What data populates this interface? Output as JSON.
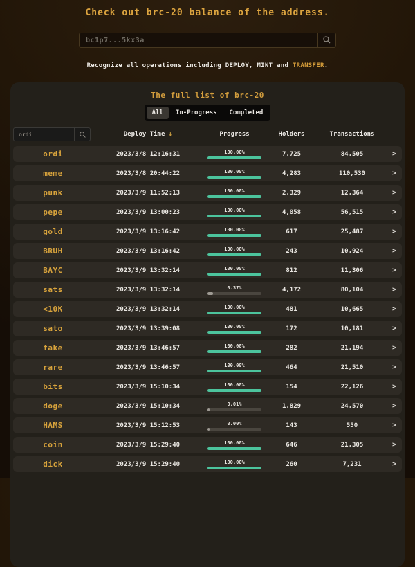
{
  "header": {
    "title": "Check out brc-20 balance of the address.",
    "address_input": {
      "placeholder": "bc1p7...5kx3a",
      "value": ""
    },
    "note": {
      "prefix": "Recognize all operations including DEPLOY, MINT and ",
      "highlight": "TRANSFER",
      "suffix": "."
    }
  },
  "panel": {
    "title": "The full list of brc-20",
    "tabs": [
      {
        "label": "All",
        "active": true
      },
      {
        "label": "In-Progress",
        "active": false
      },
      {
        "label": "Completed",
        "active": false
      }
    ],
    "filter_input": {
      "value": "ordi",
      "placeholder": ""
    },
    "columns": {
      "deploy_time": "Deploy Time",
      "progress": "Progress",
      "holders": "Holders",
      "transactions": "Transactions"
    },
    "sort": {
      "column": "deploy_time",
      "direction": "desc"
    },
    "rows": [
      {
        "token": "ordi",
        "deploy_time": "2023/3/8 12:16:31",
        "progress": "100.00%",
        "progress_pct": 100.0,
        "holders": "7,725",
        "transactions": "84,505"
      },
      {
        "token": "meme",
        "deploy_time": "2023/3/8 20:44:22",
        "progress": "100.00%",
        "progress_pct": 100.0,
        "holders": "4,283",
        "transactions": "110,530"
      },
      {
        "token": "punk",
        "deploy_time": "2023/3/9 11:52:13",
        "progress": "100.00%",
        "progress_pct": 100.0,
        "holders": "2,329",
        "transactions": "12,364"
      },
      {
        "token": "pepe",
        "deploy_time": "2023/3/9 13:00:23",
        "progress": "100.00%",
        "progress_pct": 100.0,
        "holders": "4,058",
        "transactions": "56,515"
      },
      {
        "token": "gold",
        "deploy_time": "2023/3/9 13:16:42",
        "progress": "100.00%",
        "progress_pct": 100.0,
        "holders": "617",
        "transactions": "25,487"
      },
      {
        "token": "BRUH",
        "deploy_time": "2023/3/9 13:16:42",
        "progress": "100.00%",
        "progress_pct": 100.0,
        "holders": "243",
        "transactions": "10,924"
      },
      {
        "token": "BAYC",
        "deploy_time": "2023/3/9 13:32:14",
        "progress": "100.00%",
        "progress_pct": 100.0,
        "holders": "812",
        "transactions": "11,306"
      },
      {
        "token": "sats",
        "deploy_time": "2023/3/9 13:32:14",
        "progress": "0.37%",
        "progress_pct": 0.37,
        "holders": "4,172",
        "transactions": "80,104"
      },
      {
        "token": "<10K",
        "deploy_time": "2023/3/9 13:32:14",
        "progress": "100.00%",
        "progress_pct": 100.0,
        "holders": "481",
        "transactions": "10,665"
      },
      {
        "token": "sato",
        "deploy_time": "2023/3/9 13:39:08",
        "progress": "100.00%",
        "progress_pct": 100.0,
        "holders": "172",
        "transactions": "10,181"
      },
      {
        "token": "fake",
        "deploy_time": "2023/3/9 13:46:57",
        "progress": "100.00%",
        "progress_pct": 100.0,
        "holders": "282",
        "transactions": "21,194"
      },
      {
        "token": "rare",
        "deploy_time": "2023/3/9 13:46:57",
        "progress": "100.00%",
        "progress_pct": 100.0,
        "holders": "464",
        "transactions": "21,510"
      },
      {
        "token": "bits",
        "deploy_time": "2023/3/9 15:10:34",
        "progress": "100.00%",
        "progress_pct": 100.0,
        "holders": "154",
        "transactions": "22,126"
      },
      {
        "token": "doge",
        "deploy_time": "2023/3/9 15:10:34",
        "progress": "0.01%",
        "progress_pct": 0.01,
        "holders": "1,829",
        "transactions": "24,570"
      },
      {
        "token": "HAMS",
        "deploy_time": "2023/3/9 15:12:53",
        "progress": "0.00%",
        "progress_pct": 0.0,
        "holders": "143",
        "transactions": "550"
      },
      {
        "token": "coin",
        "deploy_time": "2023/3/9 15:29:40",
        "progress": "100.00%",
        "progress_pct": 100.0,
        "holders": "646",
        "transactions": "21,305"
      },
      {
        "token": "dick",
        "deploy_time": "2023/3/9 15:29:40",
        "progress": "100.00%",
        "progress_pct": 100.0,
        "holders": "260",
        "transactions": "7,231"
      }
    ]
  },
  "icons": {
    "search": "magnifier",
    "sort_desc": "↓",
    "chevron_right": ">"
  },
  "colors": {
    "accent_gold": "#d8a33c",
    "progress_teal": "#4cc49d",
    "progress_partial": "#9e9a93",
    "progress_track": "#4a463f",
    "row_bg": "#2e2a24",
    "panel_bg": "#23201a",
    "text_light": "#e9e6e1"
  }
}
